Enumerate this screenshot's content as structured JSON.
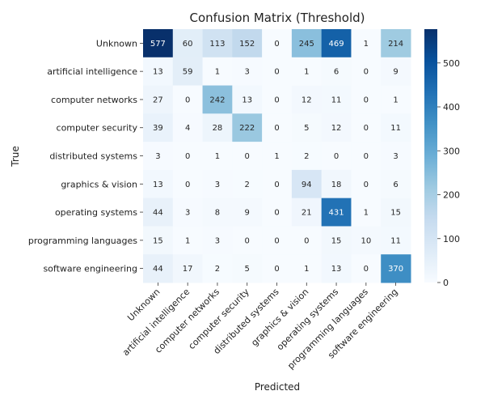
{
  "chart_data": {
    "type": "heatmap",
    "title": "Confusion Matrix (Threshold)",
    "xlabel": "Predicted",
    "ylabel": "True",
    "labels": [
      "Unknown",
      "artificial intelligence",
      "computer networks",
      "computer security",
      "distributed systems",
      "graphics & vision",
      "operating systems",
      "programming languages",
      "software engineering"
    ],
    "matrix": [
      [
        577,
        60,
        113,
        152,
        0,
        245,
        469,
        1,
        214
      ],
      [
        13,
        59,
        1,
        3,
        0,
        1,
        6,
        0,
        9
      ],
      [
        27,
        0,
        242,
        13,
        0,
        12,
        11,
        0,
        1
      ],
      [
        39,
        4,
        28,
        222,
        0,
        5,
        12,
        0,
        11
      ],
      [
        3,
        0,
        1,
        0,
        1,
        2,
        0,
        0,
        3
      ],
      [
        13,
        0,
        3,
        2,
        0,
        94,
        18,
        0,
        6
      ],
      [
        44,
        3,
        8,
        9,
        0,
        21,
        431,
        1,
        15
      ],
      [
        15,
        1,
        3,
        0,
        0,
        0,
        15,
        10,
        11
      ],
      [
        44,
        17,
        2,
        5,
        0,
        1,
        13,
        0,
        370
      ]
    ],
    "colorbar": {
      "min": 0,
      "max": 577,
      "ticks": [
        0,
        100,
        200,
        300,
        400,
        500
      ],
      "colormap": "Blues"
    }
  }
}
